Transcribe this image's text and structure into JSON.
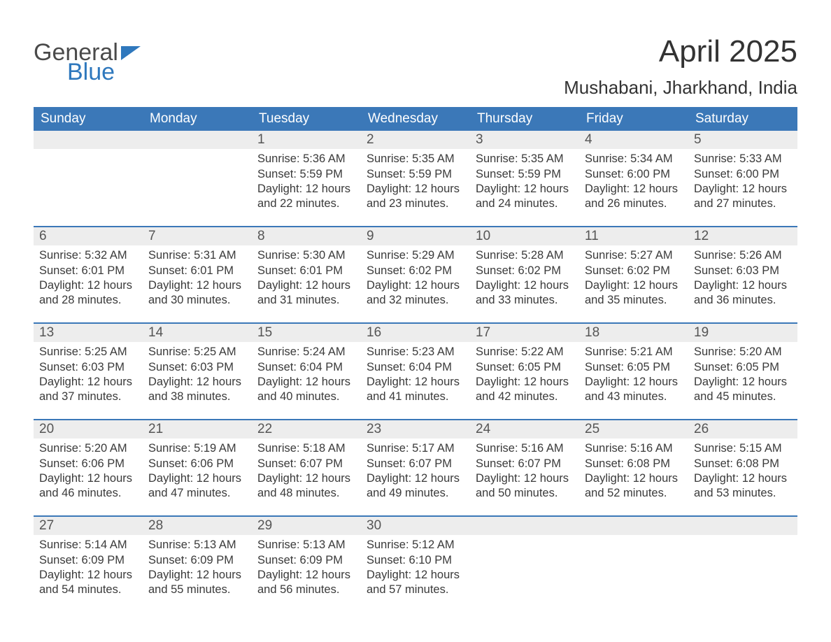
{
  "logo": {
    "word1": "General",
    "word2": "Blue",
    "triangle_color": "#2f78bd"
  },
  "title": "April 2025",
  "location": "Mushabani, Jharkhand, India",
  "colors": {
    "header_bg": "#3b78b8",
    "header_text": "#ffffff",
    "daynum_bg": "#ededed",
    "row_separator": "#3b78b8",
    "body_text": "#3a3a3a"
  },
  "typography": {
    "title_fontsize": 44,
    "location_fontsize": 26,
    "weekday_fontsize": 19,
    "daynum_fontsize": 19,
    "body_fontsize": 16.5,
    "font_family": "Segoe UI"
  },
  "weekdays": [
    "Sunday",
    "Monday",
    "Tuesday",
    "Wednesday",
    "Thursday",
    "Friday",
    "Saturday"
  ],
  "weeks": [
    [
      null,
      null,
      {
        "n": "1",
        "sr": "Sunrise: 5:36 AM",
        "ss": "Sunset: 5:59 PM",
        "dl": "Daylight: 12 hours and 22 minutes."
      },
      {
        "n": "2",
        "sr": "Sunrise: 5:35 AM",
        "ss": "Sunset: 5:59 PM",
        "dl": "Daylight: 12 hours and 23 minutes."
      },
      {
        "n": "3",
        "sr": "Sunrise: 5:35 AM",
        "ss": "Sunset: 5:59 PM",
        "dl": "Daylight: 12 hours and 24 minutes."
      },
      {
        "n": "4",
        "sr": "Sunrise: 5:34 AM",
        "ss": "Sunset: 6:00 PM",
        "dl": "Daylight: 12 hours and 26 minutes."
      },
      {
        "n": "5",
        "sr": "Sunrise: 5:33 AM",
        "ss": "Sunset: 6:00 PM",
        "dl": "Daylight: 12 hours and 27 minutes."
      }
    ],
    [
      {
        "n": "6",
        "sr": "Sunrise: 5:32 AM",
        "ss": "Sunset: 6:01 PM",
        "dl": "Daylight: 12 hours and 28 minutes."
      },
      {
        "n": "7",
        "sr": "Sunrise: 5:31 AM",
        "ss": "Sunset: 6:01 PM",
        "dl": "Daylight: 12 hours and 30 minutes."
      },
      {
        "n": "8",
        "sr": "Sunrise: 5:30 AM",
        "ss": "Sunset: 6:01 PM",
        "dl": "Daylight: 12 hours and 31 minutes."
      },
      {
        "n": "9",
        "sr": "Sunrise: 5:29 AM",
        "ss": "Sunset: 6:02 PM",
        "dl": "Daylight: 12 hours and 32 minutes."
      },
      {
        "n": "10",
        "sr": "Sunrise: 5:28 AM",
        "ss": "Sunset: 6:02 PM",
        "dl": "Daylight: 12 hours and 33 minutes."
      },
      {
        "n": "11",
        "sr": "Sunrise: 5:27 AM",
        "ss": "Sunset: 6:02 PM",
        "dl": "Daylight: 12 hours and 35 minutes."
      },
      {
        "n": "12",
        "sr": "Sunrise: 5:26 AM",
        "ss": "Sunset: 6:03 PM",
        "dl": "Daylight: 12 hours and 36 minutes."
      }
    ],
    [
      {
        "n": "13",
        "sr": "Sunrise: 5:25 AM",
        "ss": "Sunset: 6:03 PM",
        "dl": "Daylight: 12 hours and 37 minutes."
      },
      {
        "n": "14",
        "sr": "Sunrise: 5:25 AM",
        "ss": "Sunset: 6:03 PM",
        "dl": "Daylight: 12 hours and 38 minutes."
      },
      {
        "n": "15",
        "sr": "Sunrise: 5:24 AM",
        "ss": "Sunset: 6:04 PM",
        "dl": "Daylight: 12 hours and 40 minutes."
      },
      {
        "n": "16",
        "sr": "Sunrise: 5:23 AM",
        "ss": "Sunset: 6:04 PM",
        "dl": "Daylight: 12 hours and 41 minutes."
      },
      {
        "n": "17",
        "sr": "Sunrise: 5:22 AM",
        "ss": "Sunset: 6:05 PM",
        "dl": "Daylight: 12 hours and 42 minutes."
      },
      {
        "n": "18",
        "sr": "Sunrise: 5:21 AM",
        "ss": "Sunset: 6:05 PM",
        "dl": "Daylight: 12 hours and 43 minutes."
      },
      {
        "n": "19",
        "sr": "Sunrise: 5:20 AM",
        "ss": "Sunset: 6:05 PM",
        "dl": "Daylight: 12 hours and 45 minutes."
      }
    ],
    [
      {
        "n": "20",
        "sr": "Sunrise: 5:20 AM",
        "ss": "Sunset: 6:06 PM",
        "dl": "Daylight: 12 hours and 46 minutes."
      },
      {
        "n": "21",
        "sr": "Sunrise: 5:19 AM",
        "ss": "Sunset: 6:06 PM",
        "dl": "Daylight: 12 hours and 47 minutes."
      },
      {
        "n": "22",
        "sr": "Sunrise: 5:18 AM",
        "ss": "Sunset: 6:07 PM",
        "dl": "Daylight: 12 hours and 48 minutes."
      },
      {
        "n": "23",
        "sr": "Sunrise: 5:17 AM",
        "ss": "Sunset: 6:07 PM",
        "dl": "Daylight: 12 hours and 49 minutes."
      },
      {
        "n": "24",
        "sr": "Sunrise: 5:16 AM",
        "ss": "Sunset: 6:07 PM",
        "dl": "Daylight: 12 hours and 50 minutes."
      },
      {
        "n": "25",
        "sr": "Sunrise: 5:16 AM",
        "ss": "Sunset: 6:08 PM",
        "dl": "Daylight: 12 hours and 52 minutes."
      },
      {
        "n": "26",
        "sr": "Sunrise: 5:15 AM",
        "ss": "Sunset: 6:08 PM",
        "dl": "Daylight: 12 hours and 53 minutes."
      }
    ],
    [
      {
        "n": "27",
        "sr": "Sunrise: 5:14 AM",
        "ss": "Sunset: 6:09 PM",
        "dl": "Daylight: 12 hours and 54 minutes."
      },
      {
        "n": "28",
        "sr": "Sunrise: 5:13 AM",
        "ss": "Sunset: 6:09 PM",
        "dl": "Daylight: 12 hours and 55 minutes."
      },
      {
        "n": "29",
        "sr": "Sunrise: 5:13 AM",
        "ss": "Sunset: 6:09 PM",
        "dl": "Daylight: 12 hours and 56 minutes."
      },
      {
        "n": "30",
        "sr": "Sunrise: 5:12 AM",
        "ss": "Sunset: 6:10 PM",
        "dl": "Daylight: 12 hours and 57 minutes."
      },
      null,
      null,
      null
    ]
  ]
}
